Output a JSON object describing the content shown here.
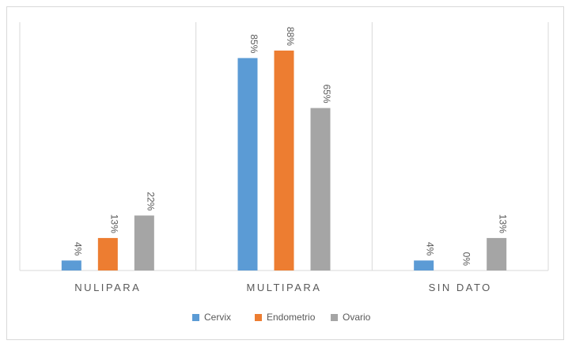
{
  "chart_data": {
    "type": "bar",
    "categories": [
      "NULIPARA",
      "MULTIPARA",
      "SIN DATO"
    ],
    "series": [
      {
        "name": "Cervix",
        "values": [
          4,
          85,
          4
        ],
        "labels": [
          "4%",
          "85%",
          "4%"
        ],
        "color": "#5b9bd5"
      },
      {
        "name": "Endometrio",
        "values": [
          13,
          88,
          0
        ],
        "labels": [
          "13%",
          "88%",
          "0%"
        ],
        "color": "#ed7d31"
      },
      {
        "name": "Ovario",
        "values": [
          22,
          65,
          13
        ],
        "labels": [
          "22%",
          "65%",
          "13%"
        ],
        "color": "#a5a5a5"
      }
    ],
    "title": "",
    "xlabel": "",
    "ylabel": "",
    "ylim": [
      0,
      100
    ],
    "grid": "vertical category dividers",
    "legend": "bottom",
    "data_labels": "rotated vertical above bars"
  }
}
